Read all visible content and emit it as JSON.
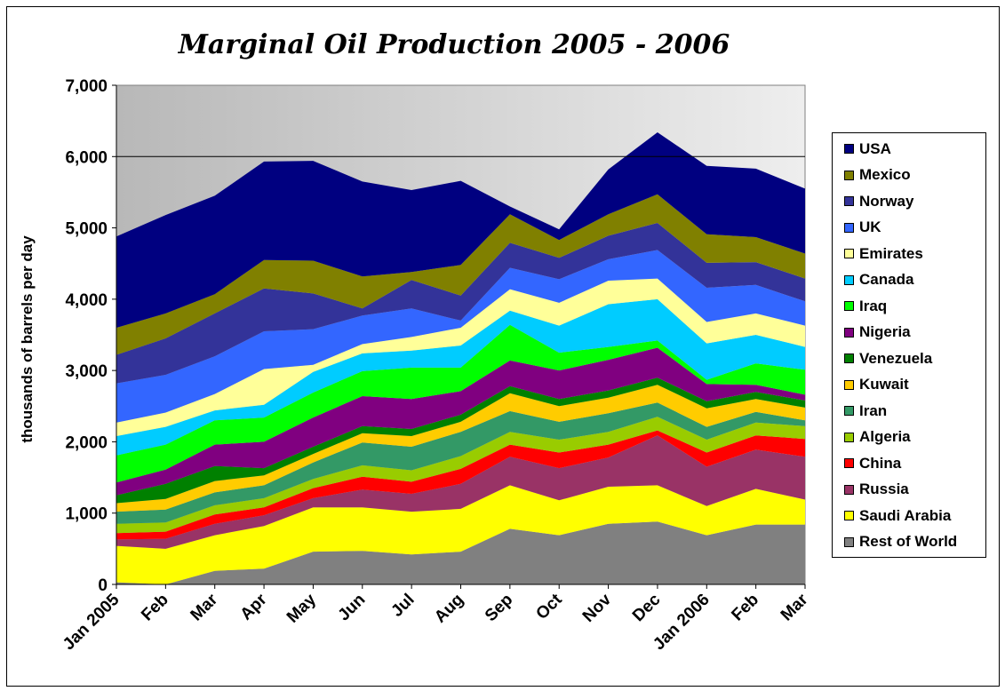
{
  "chart_data": {
    "type": "area",
    "title": "Marginal Oil Production 2005 - 2006",
    "xlabel": "",
    "ylabel": "thousands of barrels per day",
    "ylim": [
      0,
      7000
    ],
    "yticks": [
      "0",
      "1,000",
      "2,000",
      "3,000",
      "4,000",
      "5,000",
      "6,000",
      "7,000"
    ],
    "categories": [
      "Jan 2005",
      "Feb",
      "Mar",
      "Apr",
      "May",
      "Jun",
      "Jul",
      "Aug",
      "Sep",
      "Oct",
      "Nov",
      "Dec",
      "Jan 2006",
      "Feb",
      "Mar"
    ],
    "stacked": true,
    "legend_position": "right",
    "gridlines": [
      6000
    ],
    "series": [
      {
        "name": "Rest of World",
        "color": "#808080",
        "values": [
          30,
          0,
          190,
          220,
          460,
          470,
          420,
          460,
          780,
          690,
          850,
          880,
          690,
          840,
          840
        ]
      },
      {
        "name": "Saudi Arabia",
        "color": "#FFFF00",
        "values": [
          510,
          500,
          500,
          600,
          620,
          610,
          600,
          600,
          610,
          490,
          520,
          510,
          410,
          500,
          350
        ]
      },
      {
        "name": "Russia",
        "color": "#993366",
        "values": [
          90,
          140,
          160,
          150,
          130,
          250,
          250,
          350,
          400,
          450,
          410,
          700,
          550,
          550,
          600
        ]
      },
      {
        "name": "China",
        "color": "#FF0000",
        "values": [
          90,
          100,
          130,
          110,
          140,
          180,
          170,
          210,
          170,
          220,
          180,
          70,
          200,
          200,
          250
        ]
      },
      {
        "name": "Algeria",
        "color": "#99CC00",
        "values": [
          130,
          130,
          130,
          130,
          130,
          160,
          160,
          180,
          180,
          180,
          180,
          190,
          180,
          180,
          180
        ]
      },
      {
        "name": "Iran",
        "color": "#339966",
        "values": [
          170,
          180,
          180,
          180,
          230,
          320,
          330,
          340,
          290,
          250,
          260,
          200,
          180,
          150,
          80
        ]
      },
      {
        "name": "Kuwait",
        "color": "#FFCC00",
        "values": [
          120,
          150,
          160,
          140,
          120,
          130,
          150,
          140,
          250,
          220,
          220,
          250,
          260,
          180,
          180
        ]
      },
      {
        "name": "Venezuela",
        "color": "#008000",
        "values": [
          110,
          210,
          210,
          100,
          100,
          100,
          100,
          100,
          100,
          100,
          100,
          100,
          100,
          100,
          100
        ]
      },
      {
        "name": "Nigeria",
        "color": "#800080",
        "values": [
          180,
          200,
          300,
          370,
          410,
          420,
          420,
          330,
          360,
          400,
          430,
          420,
          240,
          100,
          80
        ]
      },
      {
        "name": "Iraq",
        "color": "#00FF00",
        "values": [
          380,
          350,
          340,
          340,
          350,
          350,
          440,
          330,
          500,
          250,
          180,
          100,
          60,
          300,
          350
        ]
      },
      {
        "name": "Canada",
        "color": "#00CCFF",
        "values": [
          270,
          250,
          140,
          180,
          290,
          250,
          240,
          310,
          200,
          380,
          600,
          580,
          510,
          400,
          320
        ]
      },
      {
        "name": "Emirates",
        "color": "#FFFF99",
        "values": [
          190,
          200,
          230,
          500,
          100,
          130,
          190,
          250,
          300,
          320,
          330,
          290,
          300,
          300,
          300
        ]
      },
      {
        "name": "UK",
        "color": "#3366FF",
        "values": [
          550,
          530,
          530,
          530,
          500,
          400,
          400,
          100,
          300,
          330,
          300,
          400,
          480,
          400,
          340
        ]
      },
      {
        "name": "Norway",
        "color": "#333399",
        "values": [
          400,
          510,
          600,
          600,
          500,
          100,
          400,
          350,
          350,
          300,
          330,
          380,
          350,
          320,
          320
        ]
      },
      {
        "name": "Mexico",
        "color": "#808000",
        "values": [
          380,
          350,
          270,
          400,
          460,
          450,
          110,
          430,
          400,
          250,
          300,
          400,
          400,
          350,
          350
        ]
      },
      {
        "name": "USA",
        "color": "#000080",
        "values": [
          1280,
          1380,
          1380,
          1380,
          1400,
          1330,
          1150,
          1180,
          110,
          150,
          630,
          870,
          960,
          960,
          910
        ]
      }
    ]
  }
}
